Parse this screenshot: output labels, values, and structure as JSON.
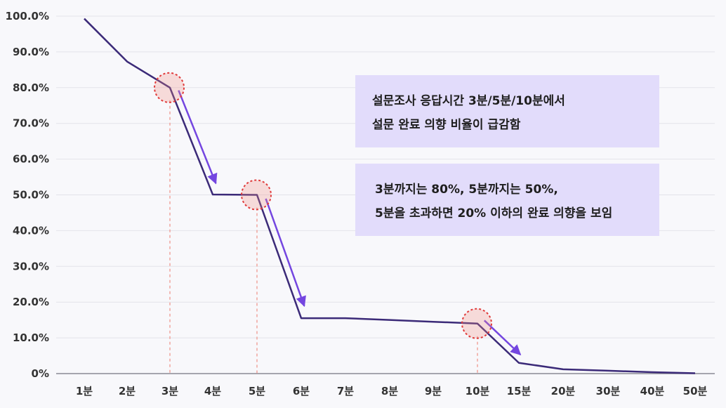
{
  "chart_data": {
    "type": "line",
    "categories": [
      "1분",
      "2분",
      "3분",
      "4분",
      "5분",
      "6분",
      "7분",
      "8분",
      "9분",
      "10분",
      "15분",
      "20분",
      "30분",
      "40분",
      "50분"
    ],
    "series": [
      {
        "values": [
          99.3,
          87.3,
          80.0,
          50.1,
          50.0,
          15.5,
          15.5,
          15.0,
          14.5,
          14.0,
          3.0,
          1.2,
          0.8,
          0.4,
          0.1
        ]
      }
    ],
    "ylim": [
      0,
      100
    ],
    "yticks": [
      "0%",
      "10.0%",
      "20.0%",
      "30.0%",
      "40.0%",
      "50.0%",
      "60.0%",
      "70.0%",
      "80.0%",
      "90.0%",
      "100.0%"
    ],
    "line_color": "#3b2a78",
    "arrow_color": "#7446e0",
    "highlight_color": "#e03a3a",
    "highlight_points": [
      2,
      4,
      9
    ],
    "arrows": [
      [
        2,
        3
      ],
      [
        4,
        5
      ],
      [
        9,
        10
      ]
    ],
    "grid": true
  },
  "annotations": [
    {
      "lines": [
        "설문조사 응답시간 3분/5분/10분에서",
        "설문 완료 의향 비율이 급감함"
      ]
    },
    {
      "lines": [
        "3분까지는 80%, 5분까지는 50%,",
        "5분을 초과하면 20% 이하의 완료 의향을 보임"
      ]
    }
  ]
}
